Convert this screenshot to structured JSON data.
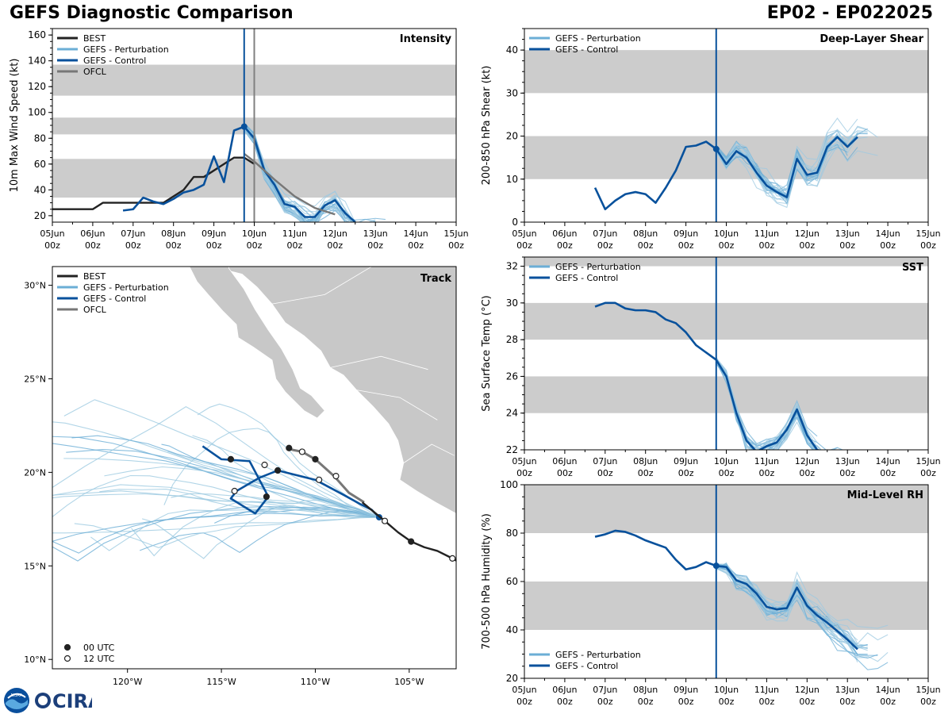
{
  "header": {
    "title": "GEFS Diagnostic Comparison",
    "storm": "EP02 - EP022025"
  },
  "logos": {
    "noaa": "NOAA",
    "cira": "CIRA"
  },
  "colors": {
    "best": "#222222",
    "perturbation": "#6baed6",
    "perturbation_thin": "#9ecae1",
    "control": "#08519c",
    "ofcl": "#777777",
    "band": "#cccccc",
    "land": "#c8c8c8",
    "vline_gray": "#808080"
  },
  "time_axis": {
    "ticks": [
      "05Jun\n00z",
      "06Jun\n00z",
      "07Jun\n00z",
      "08Jun\n00z",
      "09Jun\n00z",
      "10Jun\n00z",
      "11Jun\n00z",
      "12Jun\n00z",
      "13Jun\n00z",
      "14Jun\n00z",
      "15Jun\n00z"
    ],
    "tick_top": [
      "05Jun",
      "06Jun",
      "07Jun",
      "08Jun",
      "09Jun",
      "10Jun",
      "11Jun",
      "12Jun",
      "13Jun",
      "14Jun",
      "15Jun"
    ],
    "tick_bottom": "00z",
    "init_day": 4.75,
    "ofcl_day": 5.0
  },
  "chart_data": [
    {
      "id": "intensity",
      "type": "line",
      "title": "Intensity",
      "ylabel": "10m Max Wind Speed (kt)",
      "xlim": [
        0,
        10
      ],
      "ylim": [
        15,
        165
      ],
      "yticks": [
        20,
        40,
        60,
        80,
        100,
        120,
        140,
        160
      ],
      "bands": [
        [
          34,
          64
        ],
        [
          83,
          96
        ],
        [
          113,
          137
        ]
      ],
      "legend": [
        "BEST",
        "GEFS - Perturbation",
        "GEFS - Control",
        "OFCL"
      ],
      "series": [
        {
          "name": "BEST",
          "x": [
            -0.25,
            0,
            0.25,
            0.5,
            0.75,
            1.0,
            1.25,
            1.5,
            1.75,
            2.0,
            2.25,
            2.5,
            2.75,
            3.0,
            3.25,
            3.5,
            3.75,
            4.0,
            4.25,
            4.5,
            4.75,
            5.0
          ],
          "y": [
            25,
            25,
            25,
            25,
            25,
            25,
            30,
            30,
            30,
            30,
            30,
            30,
            30,
            35,
            40,
            50,
            50,
            55,
            60,
            65,
            65,
            60
          ]
        },
        {
          "name": "GEFS - Control",
          "x": [
            1.75,
            2.0,
            2.25,
            2.5,
            2.75,
            3.0,
            3.25,
            3.5,
            3.75,
            4.0,
            4.25,
            4.5,
            4.75,
            5.0,
            5.25,
            5.5,
            5.75,
            6.0,
            6.25,
            6.5,
            6.75,
            7.0,
            7.25,
            7.5
          ],
          "y": [
            24,
            25,
            34,
            31,
            29,
            33,
            38,
            40,
            44,
            66,
            46,
            86,
            89,
            80,
            55,
            44,
            29,
            27,
            19,
            19,
            28,
            32,
            22,
            15
          ]
        },
        {
          "name": "OFCL",
          "x": [
            4.75,
            5.0,
            5.5,
            6.0,
            6.5,
            7.0
          ],
          "y": [
            68,
            62,
            48,
            35,
            26,
            21
          ]
        }
      ],
      "control_marker": {
        "x": 4.75,
        "y": 89
      }
    },
    {
      "id": "shear",
      "type": "line",
      "title": "Deep-Layer Shear",
      "ylabel": "200-850 hPa Shear (kt)",
      "xlim": [
        0,
        10
      ],
      "ylim": [
        0,
        45
      ],
      "yticks": [
        0,
        10,
        20,
        30,
        40
      ],
      "bands": [
        [
          10,
          20
        ],
        [
          30,
          40
        ]
      ],
      "legend": [
        "GEFS - Perturbation",
        "GEFS - Control"
      ],
      "series": [
        {
          "name": "GEFS - Control",
          "x": [
            1.75,
            2.0,
            2.25,
            2.5,
            2.75,
            3.0,
            3.25,
            3.5,
            3.75,
            4.0,
            4.25,
            4.5,
            4.75,
            5.0,
            5.25,
            5.5,
            5.75,
            6.0,
            6.25,
            6.5,
            6.75,
            7.0,
            7.25,
            7.5,
            7.75,
            8.0,
            8.25
          ],
          "y": [
            8,
            3,
            5,
            6.5,
            7,
            6.5,
            4.5,
            8,
            12,
            17.5,
            17.8,
            18.7,
            17,
            13.5,
            16.5,
            15,
            11.5,
            8.5,
            7,
            5.8,
            14.7,
            11,
            11.5,
            17.5,
            19.8,
            17.5,
            19.8
          ]
        }
      ],
      "control_marker": {
        "x": 4.75,
        "y": 17
      }
    },
    {
      "id": "sst",
      "type": "line",
      "title": "SST",
      "ylabel": "Sea Surface Temp (°C)",
      "xlim": [
        0,
        10
      ],
      "ylim": [
        22,
        32.5
      ],
      "yticks": [
        22,
        24,
        26,
        28,
        30,
        32
      ],
      "bands": [
        [
          24,
          26
        ],
        [
          28,
          30
        ],
        [
          32,
          33
        ]
      ],
      "legend": [
        "GEFS - Perturbation",
        "GEFS - Control"
      ],
      "series": [
        {
          "name": "GEFS - Control",
          "x": [
            1.75,
            2.0,
            2.25,
            2.5,
            2.75,
            3.0,
            3.25,
            3.5,
            3.75,
            4.0,
            4.25,
            4.5,
            4.75,
            5.0,
            5.25,
            5.5,
            5.75,
            6.0,
            6.25,
            6.5,
            6.75,
            7.0,
            7.25,
            7.5
          ],
          "y": [
            29.8,
            30.0,
            30.0,
            29.7,
            29.6,
            29.6,
            29.5,
            29.1,
            28.9,
            28.4,
            27.7,
            27.3,
            26.9,
            26.0,
            24.0,
            22.5,
            21.9,
            22.2,
            22.4,
            23.1,
            24.2,
            22.8,
            22.0,
            21.8
          ]
        }
      ]
    },
    {
      "id": "rh",
      "type": "line",
      "title": "Mid-Level RH",
      "ylabel": "700-500 hPa Humidity (%)",
      "xlim": [
        0,
        10
      ],
      "ylim": [
        20,
        100
      ],
      "yticks": [
        20,
        40,
        60,
        80,
        100
      ],
      "bands": [
        [
          40,
          60
        ],
        [
          80,
          100
        ]
      ],
      "legend": [
        "GEFS - Perturbation",
        "GEFS - Control"
      ],
      "series": [
        {
          "name": "GEFS - Control",
          "x": [
            1.75,
            2.0,
            2.25,
            2.5,
            2.75,
            3.0,
            3.25,
            3.5,
            3.75,
            4.0,
            4.25,
            4.5,
            4.75,
            5.0,
            5.25,
            5.5,
            5.75,
            6.0,
            6.25,
            6.5,
            6.75,
            7.0,
            7.25,
            7.5,
            7.75,
            8.0,
            8.25
          ],
          "y": [
            78.5,
            79.5,
            81,
            80.5,
            79,
            77,
            75.5,
            74,
            69,
            65,
            66,
            68,
            66.5,
            66,
            60.5,
            59,
            55,
            49.5,
            48.5,
            49,
            57.5,
            50,
            46,
            43,
            39.5,
            36,
            32
          ]
        }
      ],
      "control_marker": {
        "x": 4.75,
        "y": 66.5
      }
    },
    {
      "id": "track",
      "type": "scatter",
      "title": "Track",
      "xlim": [
        -124,
        -102.5
      ],
      "ylim": [
        9.5,
        31
      ],
      "xticks": [
        {
          "v": -120,
          "label": "120°W"
        },
        {
          "v": -115,
          "label": "115°W"
        },
        {
          "v": -110,
          "label": "110°W"
        },
        {
          "v": -105,
          "label": "105°W"
        }
      ],
      "yticks": [
        {
          "v": 10,
          "label": "10°N"
        },
        {
          "v": 15,
          "label": "15°N"
        },
        {
          "v": 20,
          "label": "20°N"
        },
        {
          "v": 25,
          "label": "25°N"
        },
        {
          "v": 30,
          "label": "30°N"
        }
      ],
      "legend": [
        "BEST",
        "GEFS - Perturbation",
        "GEFS - Control",
        "OFCL"
      ],
      "marker_legend": [
        "00 UTC",
        "12 UTC"
      ],
      "best": {
        "lon": [
          -102.0,
          -102.7,
          -103.5,
          -104.2,
          -104.9,
          -105.6,
          -106.3,
          -106.9,
          -107.5
        ],
        "lat": [
          15.0,
          15.4,
          15.8,
          16.0,
          16.3,
          16.8,
          17.4,
          17.9,
          18.4
        ],
        "markers": [
          [
            "12",
            -102.7,
            15.4
          ],
          [
            "00",
            -104.9,
            16.3
          ],
          [
            "12",
            -106.3,
            17.4
          ]
        ]
      },
      "control": {
        "lon": [
          -106.6,
          -107.0,
          -107.6,
          -108.5,
          -110.0,
          -111.2,
          -112.0,
          -113.0,
          -114.2,
          -114.5,
          -113.2,
          -112.5,
          -113.5,
          -115.0,
          -116.0
        ],
        "lat": [
          17.6,
          18.0,
          18.3,
          18.8,
          19.6,
          19.9,
          20.1,
          19.7,
          19.0,
          18.6,
          17.8,
          18.7,
          20.6,
          20.7,
          21.4
        ],
        "markers": [
          [
            "ctl",
            -106.6,
            17.6
          ],
          [
            "12",
            -109.8,
            19.6
          ],
          [
            "00",
            -112.0,
            20.1
          ],
          [
            "12",
            -114.3,
            19.0
          ],
          [
            "00",
            -112.6,
            18.7
          ],
          [
            "12",
            -112.7,
            20.4
          ],
          [
            "00",
            -114.5,
            20.7
          ]
        ]
      },
      "ofcl": {
        "lon": [
          -107.4,
          -108.2,
          -109.0,
          -110.0,
          -110.7,
          -111.2,
          -111.5
        ],
        "lat": [
          18.4,
          18.9,
          19.8,
          20.7,
          21.1,
          21.2,
          21.3
        ],
        "markers": [
          [
            "12",
            -108.9,
            19.8
          ],
          [
            "00",
            -110.0,
            20.7
          ],
          [
            "12",
            -110.7,
            21.1
          ],
          [
            "00",
            -111.4,
            21.3
          ]
        ]
      }
    }
  ]
}
